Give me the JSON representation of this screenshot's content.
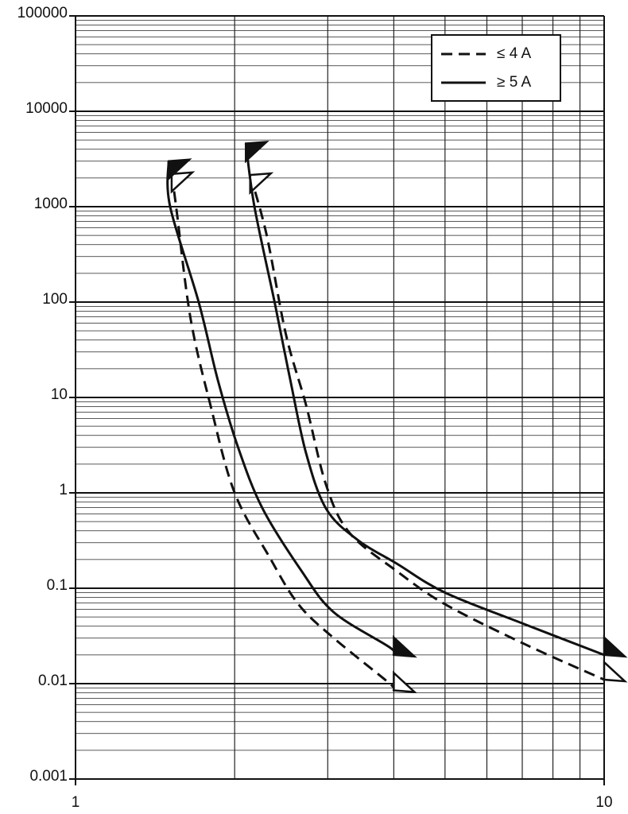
{
  "chart_data": {
    "type": "line",
    "xscale": "log",
    "yscale": "log",
    "xlim": [
      1,
      10
    ],
    "ylim": [
      0.001,
      100000
    ],
    "xticks": [
      1,
      10
    ],
    "yticks": [
      0.001,
      0.01,
      0.1,
      1,
      10,
      100,
      1000,
      10000,
      100000
    ],
    "xminor": [
      2,
      3,
      4,
      5,
      6,
      7,
      8,
      9
    ],
    "yminor": [
      0.002,
      0.003,
      0.004,
      0.005,
      0.006,
      0.007,
      0.008,
      0.009,
      0.02,
      0.03,
      0.04,
      0.05,
      0.06,
      0.07,
      0.08,
      0.09,
      0.2,
      0.3,
      0.4,
      0.5,
      0.6,
      0.7,
      0.8,
      0.9,
      2,
      3,
      4,
      5,
      6,
      7,
      8,
      9,
      20,
      30,
      40,
      50,
      60,
      70,
      80,
      90,
      200,
      300,
      400,
      500,
      600,
      700,
      800,
      900,
      2000,
      3000,
      4000,
      5000,
      6000,
      7000,
      8000,
      9000,
      20000,
      30000,
      40000,
      50000,
      60000,
      70000,
      80000,
      90000
    ],
    "grid": true,
    "legend": "top-right",
    "series": [
      {
        "name": "≤ 4 A",
        "color": "#111111",
        "dash": true,
        "curves": [
          {
            "x": [
              1.52,
              1.55,
              1.65,
              1.8,
              2.0,
              2.33,
              2.64,
              3.08,
              3.93,
              4.0
            ],
            "values": [
              2200,
              1000,
              68,
              8.3,
              1,
              0.21,
              0.068,
              0.03,
              0.01,
              0.0085
            ]
          },
          {
            "x": [
              2.14,
              2.3,
              2.5,
              2.73,
              2.98,
              3.3,
              4.06,
              5.0,
              7.07,
              10
            ],
            "values": [
              2150,
              500,
              46,
              8.3,
              1.2,
              0.38,
              0.15,
              0.068,
              0.026,
              0.011
            ]
          }
        ]
      },
      {
        "name": "≥ 5 A",
        "color": "#111111",
        "dash": false,
        "curves": [
          {
            "x": [
              1.5,
              1.51,
              1.71,
              1.86,
              2.03,
              2.26,
              2.68,
              3.08,
              3.93,
              4.0
            ],
            "values": [
              3000,
              1000,
              100,
              15,
              3,
              0.68,
              0.15,
              0.056,
              0.024,
              0.02
            ]
          },
          {
            "x": [
              2.1,
              2.18,
              2.38,
              2.55,
              2.73,
              2.98,
              3.42,
              4.06,
              5.0,
              7.07,
              10
            ],
            "values": [
              4600,
              1000,
              100,
              15,
              2.6,
              0.68,
              0.32,
              0.18,
              0.09,
              0.042,
              0.02
            ]
          }
        ]
      }
    ]
  }
}
